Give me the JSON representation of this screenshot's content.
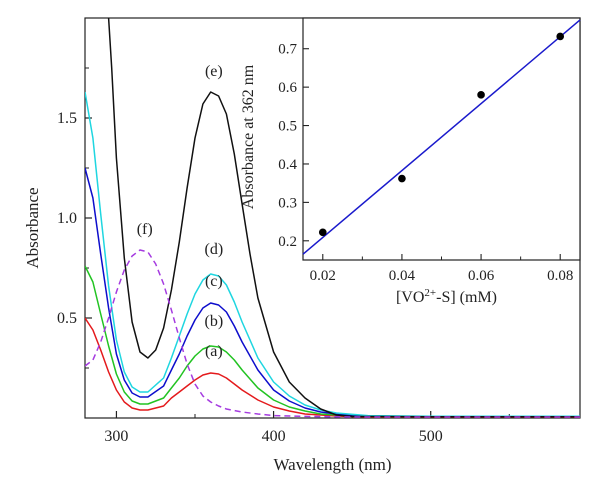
{
  "chart_data": [
    {
      "type": "line",
      "xlabel": "Wavelength (nm)",
      "ylabel": "Absorbance",
      "xlim": [
        280,
        595
      ],
      "ylim": [
        0,
        2.0
      ],
      "xticks": [
        300,
        400,
        500
      ],
      "yticks": [
        0.5,
        1.0,
        1.5
      ],
      "xtick_labels": [
        "300",
        "400",
        "500"
      ],
      "ytick_labels": [
        "0.5",
        "1.0",
        "1.5"
      ],
      "series": [
        {
          "name": "(a)",
          "color": "#e41a1c",
          "dash": "solid",
          "points": [
            [
              280,
              0.5
            ],
            [
              285,
              0.44
            ],
            [
              290,
              0.34
            ],
            [
              295,
              0.23
            ],
            [
              300,
              0.14
            ],
            [
              305,
              0.08
            ],
            [
              310,
              0.05
            ],
            [
              315,
              0.04
            ],
            [
              320,
              0.04
            ],
            [
              330,
              0.06
            ],
            [
              335,
              0.1
            ],
            [
              340,
              0.13
            ],
            [
              345,
              0.16
            ],
            [
              350,
              0.19
            ],
            [
              355,
              0.215
            ],
            [
              360,
              0.225
            ],
            [
              365,
              0.22
            ],
            [
              370,
              0.2
            ],
            [
              375,
              0.17
            ],
            [
              380,
              0.14
            ],
            [
              390,
              0.09
            ],
            [
              400,
              0.055
            ],
            [
              410,
              0.035
            ],
            [
              420,
              0.02
            ],
            [
              430,
              0.015
            ],
            [
              440,
              0.01
            ],
            [
              460,
              0.005
            ],
            [
              500,
              0.005
            ],
            [
              595,
              0.005
            ]
          ],
          "label_at": [
            362,
            0.31
          ]
        },
        {
          "name": "(b)",
          "color": "#22c322",
          "dash": "solid",
          "points": [
            [
              280,
              0.76
            ],
            [
              285,
              0.68
            ],
            [
              290,
              0.52
            ],
            [
              295,
              0.36
            ],
            [
              300,
              0.22
            ],
            [
              305,
              0.13
            ],
            [
              310,
              0.085
            ],
            [
              315,
              0.07
            ],
            [
              320,
              0.07
            ],
            [
              330,
              0.1
            ],
            [
              335,
              0.15
            ],
            [
              340,
              0.2
            ],
            [
              345,
              0.26
            ],
            [
              350,
              0.31
            ],
            [
              355,
              0.345
            ],
            [
              360,
              0.36
            ],
            [
              365,
              0.355
            ],
            [
              370,
              0.33
            ],
            [
              375,
              0.29
            ],
            [
              380,
              0.24
            ],
            [
              390,
              0.15
            ],
            [
              400,
              0.09
            ],
            [
              410,
              0.055
            ],
            [
              420,
              0.035
            ],
            [
              430,
              0.02
            ],
            [
              440,
              0.015
            ],
            [
              460,
              0.008
            ],
            [
              500,
              0.006
            ],
            [
              595,
              0.006
            ]
          ],
          "label_at": [
            362,
            0.46
          ]
        },
        {
          "name": "(c)",
          "color": "#0d0dcc",
          "dash": "solid",
          "points": [
            [
              280,
              1.25
            ],
            [
              285,
              1.1
            ],
            [
              290,
              0.82
            ],
            [
              295,
              0.55
            ],
            [
              300,
              0.32
            ],
            [
              305,
              0.19
            ],
            [
              310,
              0.125
            ],
            [
              315,
              0.105
            ],
            [
              320,
              0.105
            ],
            [
              330,
              0.16
            ],
            [
              335,
              0.24
            ],
            [
              340,
              0.32
            ],
            [
              345,
              0.41
            ],
            [
              350,
              0.49
            ],
            [
              355,
              0.55
            ],
            [
              360,
              0.575
            ],
            [
              365,
              0.565
            ],
            [
              370,
              0.53
            ],
            [
              375,
              0.46
            ],
            [
              380,
              0.38
            ],
            [
              390,
              0.24
            ],
            [
              400,
              0.14
            ],
            [
              410,
              0.085
            ],
            [
              420,
              0.05
            ],
            [
              430,
              0.03
            ],
            [
              440,
              0.02
            ],
            [
              460,
              0.01
            ],
            [
              500,
              0.007
            ],
            [
              595,
              0.007
            ]
          ],
          "label_at": [
            362,
            0.66
          ]
        },
        {
          "name": "(d)",
          "color": "#1fd6e0",
          "dash": "solid",
          "points": [
            [
              280,
              1.63
            ],
            [
              285,
              1.4
            ],
            [
              290,
              1.02
            ],
            [
              295,
              0.66
            ],
            [
              300,
              0.39
            ],
            [
              305,
              0.23
            ],
            [
              310,
              0.155
            ],
            [
              315,
              0.13
            ],
            [
              320,
              0.13
            ],
            [
              330,
              0.2
            ],
            [
              335,
              0.3
            ],
            [
              340,
              0.41
            ],
            [
              345,
              0.52
            ],
            [
              350,
              0.62
            ],
            [
              355,
              0.69
            ],
            [
              360,
              0.72
            ],
            [
              365,
              0.71
            ],
            [
              370,
              0.665
            ],
            [
              375,
              0.58
            ],
            [
              380,
              0.48
            ],
            [
              390,
              0.3
            ],
            [
              400,
              0.18
            ],
            [
              410,
              0.11
            ],
            [
              420,
              0.065
            ],
            [
              430,
              0.04
            ],
            [
              440,
              0.025
            ],
            [
              460,
              0.012
            ],
            [
              500,
              0.009
            ],
            [
              595,
              0.009
            ]
          ],
          "label_at": [
            362,
            0.82
          ]
        },
        {
          "name": "(e)",
          "color": "#111111",
          "dash": "solid",
          "points": [
            [
              295,
              2.0
            ],
            [
              297,
              1.75
            ],
            [
              300,
              1.3
            ],
            [
              305,
              0.8
            ],
            [
              310,
              0.48
            ],
            [
              315,
              0.33
            ],
            [
              320,
              0.3
            ],
            [
              325,
              0.34
            ],
            [
              330,
              0.45
            ],
            [
              335,
              0.64
            ],
            [
              340,
              0.88
            ],
            [
              345,
              1.15
            ],
            [
              350,
              1.4
            ],
            [
              355,
              1.57
            ],
            [
              360,
              1.63
            ],
            [
              365,
              1.61
            ],
            [
              370,
              1.52
            ],
            [
              375,
              1.32
            ],
            [
              380,
              1.07
            ],
            [
              385,
              0.82
            ],
            [
              390,
              0.6
            ],
            [
              400,
              0.33
            ],
            [
              410,
              0.18
            ],
            [
              420,
              0.1
            ],
            [
              430,
              0.045
            ],
            [
              440,
              0.015
            ],
            [
              450,
              0.008
            ],
            [
              500,
              0.006
            ],
            [
              595,
              0.006
            ]
          ],
          "label_at": [
            362,
            1.71
          ]
        },
        {
          "name": "(f)",
          "color": "#a53be0",
          "dash": "dashed",
          "points": [
            [
              280,
              0.26
            ],
            [
              285,
              0.29
            ],
            [
              290,
              0.38
            ],
            [
              295,
              0.5
            ],
            [
              300,
              0.63
            ],
            [
              305,
              0.74
            ],
            [
              310,
              0.81
            ],
            [
              315,
              0.84
            ],
            [
              320,
              0.83
            ],
            [
              325,
              0.77
            ],
            [
              330,
              0.67
            ],
            [
              335,
              0.54
            ],
            [
              340,
              0.4
            ],
            [
              345,
              0.27
            ],
            [
              350,
              0.17
            ],
            [
              355,
              0.11
            ],
            [
              360,
              0.08
            ],
            [
              365,
              0.06
            ],
            [
              370,
              0.045
            ],
            [
              380,
              0.03
            ],
            [
              390,
              0.02
            ],
            [
              400,
              0.012
            ],
            [
              420,
              0.008
            ],
            [
              450,
              0.005
            ],
            [
              595,
              0.005
            ]
          ],
          "label_at": [
            318,
            0.92
          ]
        }
      ]
    },
    {
      "type": "scatter",
      "xlabel": "[VO2+-S] (mM)",
      "xlabel_parts": {
        "base": "[VO",
        "sup": "2+",
        "rest": "-S] (mM)"
      },
      "ylabel": "Absorbance at 362 nm",
      "xlim": [
        0.015,
        0.085
      ],
      "ylim": [
        0.15,
        0.78
      ],
      "xticks": [
        0.02,
        0.04,
        0.06,
        0.08
      ],
      "yticks": [
        0.2,
        0.3,
        0.4,
        0.5,
        0.6,
        0.7
      ],
      "xtick_labels": [
        "0.02",
        "0.04",
        "0.06",
        "0.08"
      ],
      "ytick_labels": [
        "0.2",
        "0.3",
        "0.4",
        "0.5",
        "0.6",
        "0.7"
      ],
      "points": {
        "x": [
          0.02,
          0.04,
          0.06,
          0.08
        ],
        "y": [
          0.222,
          0.362,
          0.58,
          0.732
        ]
      },
      "fit_line": {
        "x": [
          0.015,
          0.085
        ],
        "y": [
          0.165,
          0.775
        ],
        "color": "#1a1acc"
      },
      "marker_color": "#000000"
    }
  ]
}
